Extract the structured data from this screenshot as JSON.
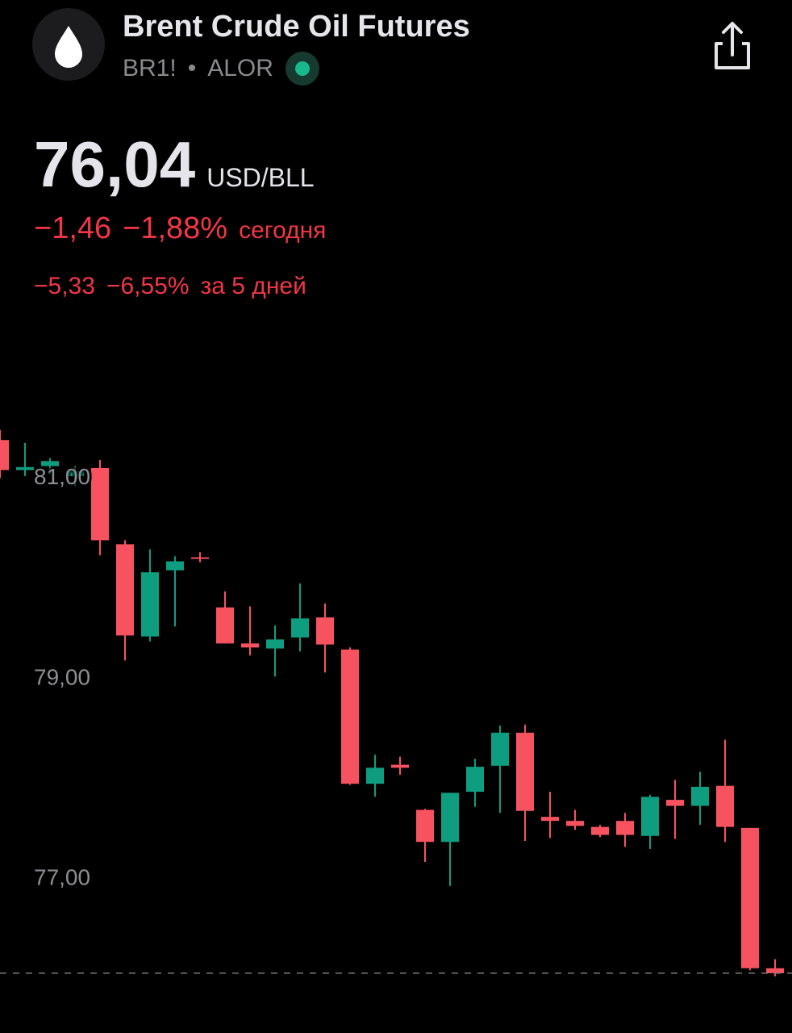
{
  "header": {
    "title": "Brent Crude Oil Futures",
    "ticker": "BR1!",
    "separator": "•",
    "exchange": "ALOR"
  },
  "quote": {
    "price": "76,04",
    "unit": "USD/BLL",
    "day_change": "−1,46",
    "day_change_pct": "−1,88%",
    "day_label": "сегодня",
    "week_change": "−5,33",
    "week_change_pct": "−6,55%",
    "week_label": "за 5 дней"
  },
  "chart_data": {
    "type": "candlestick",
    "open": [
      81.36,
      81.06,
      81.1,
      81.0,
      81.08,
      80.32,
      79.4,
      80.06,
      80.19,
      79.69,
      79.33,
      79.28,
      79.39,
      79.59,
      79.27,
      77.93,
      78.12,
      77.67,
      77.35,
      77.85,
      78.11,
      78.44,
      77.6,
      77.56,
      77.5,
      77.56,
      77.41,
      77.77,
      77.71,
      77.91,
      77.49,
      76.09
    ],
    "high": [
      81.46,
      81.33,
      81.18,
      81.1,
      81.16,
      80.36,
      80.27,
      80.2,
      80.24,
      79.85,
      79.7,
      79.51,
      79.93,
      79.73,
      79.29,
      78.22,
      78.2,
      77.68,
      77.84,
      78.18,
      78.51,
      78.52,
      77.85,
      77.67,
      77.52,
      77.64,
      77.82,
      77.97,
      78.05,
      78.37,
      77.49,
      76.18
    ],
    "low": [
      80.98,
      81.0,
      81.02,
      80.9,
      80.21,
      79.16,
      79.35,
      79.5,
      80.14,
      79.33,
      79.21,
      79.0,
      79.25,
      79.04,
      77.92,
      77.8,
      78.02,
      77.15,
      76.91,
      77.7,
      77.64,
      77.36,
      77.39,
      77.47,
      77.4,
      77.3,
      77.28,
      77.38,
      77.52,
      77.35,
      76.07,
      76.01
    ],
    "close": [
      81.06,
      81.09,
      81.15,
      81.05,
      80.36,
      79.41,
      80.04,
      80.15,
      80.18,
      79.33,
      79.29,
      79.37,
      79.58,
      79.32,
      77.93,
      78.09,
      78.09,
      77.35,
      77.84,
      78.1,
      78.44,
      77.66,
      77.56,
      77.51,
      77.42,
      77.42,
      77.8,
      77.71,
      77.9,
      77.5,
      76.09,
      76.04
    ],
    "up_color": "#0f9d80",
    "down_color": "#f7525f",
    "ylim": [
      75.5,
      81.7
    ],
    "yticks": [
      {
        "value": 77,
        "label": "77,00"
      },
      {
        "value": 79,
        "label": "79,00"
      },
      {
        "value": 81,
        "label": "81,00"
      }
    ],
    "grid": false
  }
}
